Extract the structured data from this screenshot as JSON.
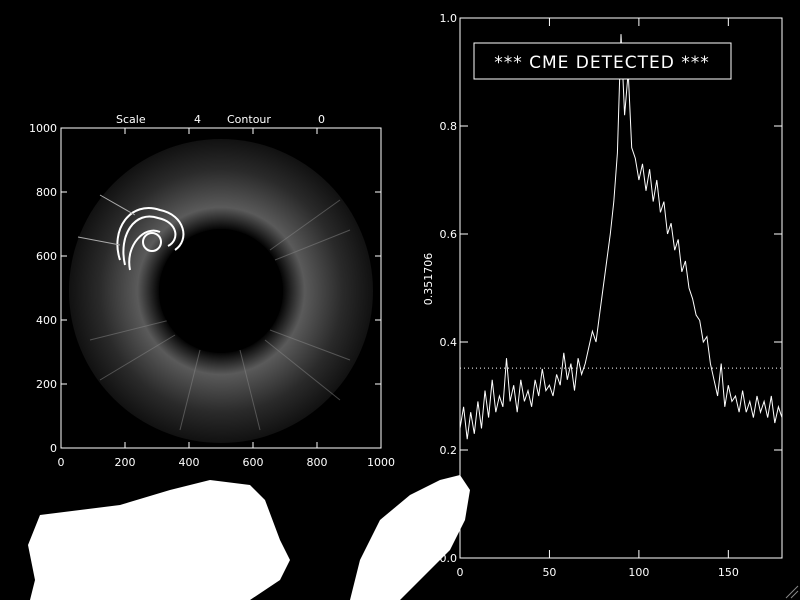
{
  "left_panel": {
    "header": {
      "scale_label": "Scale",
      "scale_value": "4",
      "contour_label": "Contour",
      "contour_value": "0"
    },
    "x_ticks": [
      "0",
      "200",
      "400",
      "600",
      "800",
      "1000"
    ],
    "y_ticks": [
      "0",
      "200",
      "400",
      "600",
      "800",
      "1000"
    ],
    "image_range": [
      0,
      1000
    ]
  },
  "right_panel": {
    "alert_text": "*** CME DETECTED ***",
    "ylabel": "0.351706",
    "threshold": 0.351706
  },
  "chart_data": {
    "type": "line",
    "xlim": [
      0,
      180
    ],
    "ylim": [
      0.0,
      1.0
    ],
    "x_ticks": [
      "0",
      "50",
      "100",
      "150"
    ],
    "y_ticks": [
      "0.0",
      "0.2",
      "0.4",
      "0.6",
      "0.8",
      "1.0"
    ],
    "grid": false,
    "series": [
      {
        "x": [
          0,
          2,
          4,
          6,
          8,
          10,
          12,
          14,
          16,
          18,
          20,
          22,
          24,
          26,
          28,
          30,
          32,
          34,
          36,
          38,
          40,
          42,
          44,
          46,
          48,
          50,
          52,
          54,
          56,
          58,
          60,
          62,
          64,
          66,
          68,
          70,
          72,
          74,
          76,
          78,
          80,
          82,
          84,
          86,
          88,
          90,
          92,
          94,
          96,
          98,
          100,
          102,
          104,
          106,
          108,
          110,
          112,
          114,
          116,
          118,
          120,
          122,
          124,
          126,
          128,
          130,
          132,
          134,
          136,
          138,
          140,
          142,
          144,
          146,
          148,
          150,
          152,
          154,
          156,
          158,
          160,
          162,
          164,
          166,
          168,
          170,
          172,
          174,
          176,
          178,
          180
        ],
        "values": [
          0.24,
          0.28,
          0.22,
          0.27,
          0.23,
          0.29,
          0.24,
          0.31,
          0.26,
          0.33,
          0.27,
          0.3,
          0.28,
          0.37,
          0.29,
          0.32,
          0.27,
          0.33,
          0.29,
          0.31,
          0.28,
          0.33,
          0.3,
          0.35,
          0.31,
          0.32,
          0.3,
          0.34,
          0.32,
          0.38,
          0.33,
          0.36,
          0.31,
          0.37,
          0.34,
          0.36,
          0.39,
          0.42,
          0.4,
          0.45,
          0.5,
          0.55,
          0.6,
          0.66,
          0.75,
          0.97,
          0.82,
          0.9,
          0.76,
          0.74,
          0.7,
          0.73,
          0.68,
          0.72,
          0.66,
          0.7,
          0.64,
          0.66,
          0.6,
          0.62,
          0.57,
          0.59,
          0.53,
          0.55,
          0.5,
          0.48,
          0.45,
          0.44,
          0.4,
          0.41,
          0.36,
          0.33,
          0.3,
          0.36,
          0.28,
          0.32,
          0.29,
          0.3,
          0.27,
          0.31,
          0.27,
          0.29,
          0.26,
          0.3,
          0.27,
          0.29,
          0.26,
          0.3,
          0.25,
          0.28,
          0.26
        ]
      }
    ]
  },
  "colors": {
    "background": "#000000",
    "foreground": "#ffffff"
  }
}
